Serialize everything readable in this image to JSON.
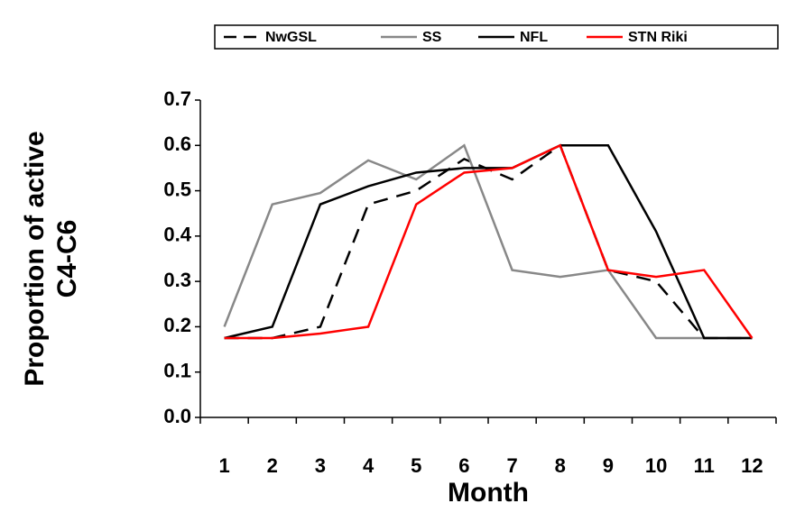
{
  "chart_data": {
    "type": "line",
    "x_label": "Month",
    "y_label": [
      "Proportion of active",
      "C4-C6"
    ],
    "categories": [
      "1",
      "2",
      "3",
      "4",
      "5",
      "6",
      "7",
      "8",
      "9",
      "10",
      "11",
      "12"
    ],
    "series": [
      {
        "name": "NwGSL",
        "color": "#000000",
        "dash": true,
        "values": [
          0.175,
          0.175,
          0.2,
          0.47,
          0.5,
          0.57,
          0.525,
          0.6,
          0.325,
          0.3,
          0.175,
          0.175
        ]
      },
      {
        "name": "SS",
        "color": "#888888",
        "dash": false,
        "values": [
          0.2,
          0.47,
          0.495,
          0.567,
          0.525,
          0.6,
          0.325,
          0.31,
          0.325,
          0.175,
          0.175,
          0.175
        ]
      },
      {
        "name": "NFL",
        "color": "#000000",
        "dash": false,
        "values": [
          0.175,
          0.2,
          0.47,
          0.51,
          0.54,
          0.55,
          0.55,
          0.6,
          0.6,
          0.41,
          0.175,
          0.175
        ]
      },
      {
        "name": "STN Riki",
        "color": "#ff0000",
        "dash": false,
        "values": [
          0.175,
          0.175,
          0.185,
          0.2,
          0.47,
          0.54,
          0.55,
          0.6,
          0.325,
          0.31,
          0.325,
          0.175
        ]
      }
    ],
    "ylim": [
      0,
      0.7
    ],
    "yticks": [
      {
        "value": 0,
        "label": "0.0"
      },
      0.1,
      0.2,
      0.3,
      0.4,
      0.5,
      0.6,
      0.7
    ],
    "grid": false,
    "legend": "top"
  }
}
